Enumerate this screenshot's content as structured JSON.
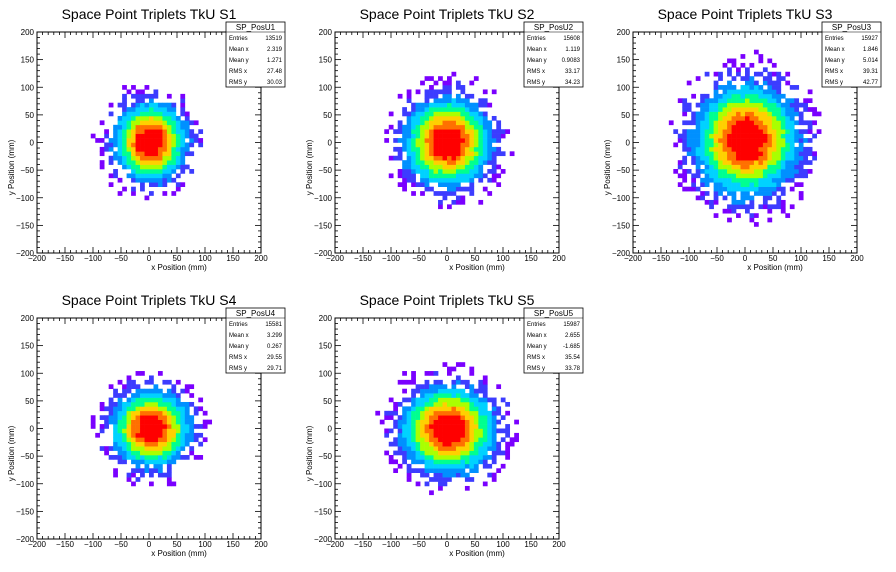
{
  "colors": {
    "palette": [
      "#7a00ff",
      "#3c3cff",
      "#0090ff",
      "#00d2ff",
      "#00ff90",
      "#aaff00",
      "#ffd000",
      "#ff7000",
      "#ff0000"
    ]
  },
  "chart_data": [
    {
      "type": "heatmap",
      "title": "Space Point Triplets TkU S1",
      "xlabel": "x Position (mm)",
      "ylabel": "y Position (mm)",
      "xlim": [
        -200,
        200
      ],
      "ylim": [
        -200,
        200
      ],
      "xticks": [
        "−200",
        "−150",
        "−100",
        "−50",
        "0",
        "50",
        "100",
        "150",
        "200"
      ],
      "yticks": [
        "200",
        "150",
        "100",
        "50",
        "0",
        "−50",
        "−100",
        "−150",
        "−200"
      ],
      "center": [
        2.319,
        1.271
      ],
      "spread": [
        27.48,
        30.03
      ],
      "stats": {
        "name": "SP_PosU1",
        "rows": [
          [
            "Entries",
            "13519"
          ],
          [
            "Mean x",
            "2.319"
          ],
          [
            "Mean y",
            "1.271"
          ],
          [
            "RMS x",
            "27.48"
          ],
          [
            "RMS y",
            "30.03"
          ]
        ]
      }
    },
    {
      "type": "heatmap",
      "title": "Space Point Triplets TkU S2",
      "xlabel": "x Position (mm)",
      "ylabel": "y Position (mm)",
      "xlim": [
        -200,
        200
      ],
      "ylim": [
        -200,
        200
      ],
      "xticks": [
        "−200",
        "−150",
        "−100",
        "−50",
        "0",
        "50",
        "100",
        "150",
        "200"
      ],
      "yticks": [
        "200",
        "150",
        "100",
        "50",
        "0",
        "−50",
        "−100",
        "−150",
        "−200"
      ],
      "center": [
        1.119,
        0.9083
      ],
      "spread": [
        33.17,
        34.23
      ],
      "stats": {
        "name": "SP_PosU2",
        "rows": [
          [
            "Entries",
            "15608"
          ],
          [
            "Mean x",
            "1.119"
          ],
          [
            "Mean y",
            "0.9083"
          ],
          [
            "RMS x",
            "33.17"
          ],
          [
            "RMS y",
            "34.23"
          ]
        ]
      }
    },
    {
      "type": "heatmap",
      "title": "Space Point Triplets TkU S3",
      "xlabel": "x Position (mm)",
      "ylabel": "y Position (mm)",
      "xlim": [
        -200,
        200
      ],
      "ylim": [
        -200,
        200
      ],
      "xticks": [
        "−200",
        "−150",
        "−100",
        "−50",
        "0",
        "50",
        "100",
        "150",
        "200"
      ],
      "yticks": [
        "200",
        "150",
        "100",
        "50",
        "0",
        "−50",
        "−100",
        "−150",
        "−200"
      ],
      "center": [
        1.846,
        5.014
      ],
      "spread": [
        39.31,
        42.77
      ],
      "stats": {
        "name": "SP_PosU3",
        "rows": [
          [
            "Entries",
            "15927"
          ],
          [
            "Mean x",
            "1.846"
          ],
          [
            "Mean y",
            "5.014"
          ],
          [
            "RMS x",
            "39.31"
          ],
          [
            "RMS y",
            "42.77"
          ]
        ]
      }
    },
    {
      "type": "heatmap",
      "title": "Space Point Triplets TkU S4",
      "xlabel": "x Position (mm)",
      "ylabel": "y Position (mm)",
      "xlim": [
        -200,
        200
      ],
      "ylim": [
        -200,
        200
      ],
      "xticks": [
        "−200",
        "−150",
        "−100",
        "−50",
        "0",
        "50",
        "100",
        "150",
        "200"
      ],
      "yticks": [
        "200",
        "150",
        "100",
        "50",
        "0",
        "−50",
        "−100",
        "−150",
        "−200"
      ],
      "center": [
        3.299,
        0.267
      ],
      "spread": [
        29.55,
        29.71
      ],
      "stats": {
        "name": "SP_PosU4",
        "rows": [
          [
            "Entries",
            "15581"
          ],
          [
            "Mean x",
            "3.299"
          ],
          [
            "Mean y",
            "0.267"
          ],
          [
            "RMS x",
            "29.55"
          ],
          [
            "RMS y",
            "29.71"
          ]
        ]
      }
    },
    {
      "type": "heatmap",
      "title": "Space Point Triplets TkU S5",
      "xlabel": "x Position (mm)",
      "ylabel": "y Position (mm)",
      "xlim": [
        -200,
        200
      ],
      "ylim": [
        -200,
        200
      ],
      "xticks": [
        "−200",
        "−150",
        "−100",
        "−50",
        "0",
        "50",
        "100",
        "150",
        "200"
      ],
      "yticks": [
        "200",
        "150",
        "100",
        "50",
        "0",
        "−50",
        "−100",
        "−150",
        "−200"
      ],
      "center": [
        2.655,
        -1.685
      ],
      "spread": [
        35.54,
        33.78
      ],
      "stats": {
        "name": "SP_PosU5",
        "rows": [
          [
            "Entries",
            "15987"
          ],
          [
            "Mean x",
            "2.655"
          ],
          [
            "Mean y",
            "-1.685"
          ],
          [
            "RMS x",
            "35.54"
          ],
          [
            "RMS y",
            "33.78"
          ]
        ]
      }
    }
  ]
}
